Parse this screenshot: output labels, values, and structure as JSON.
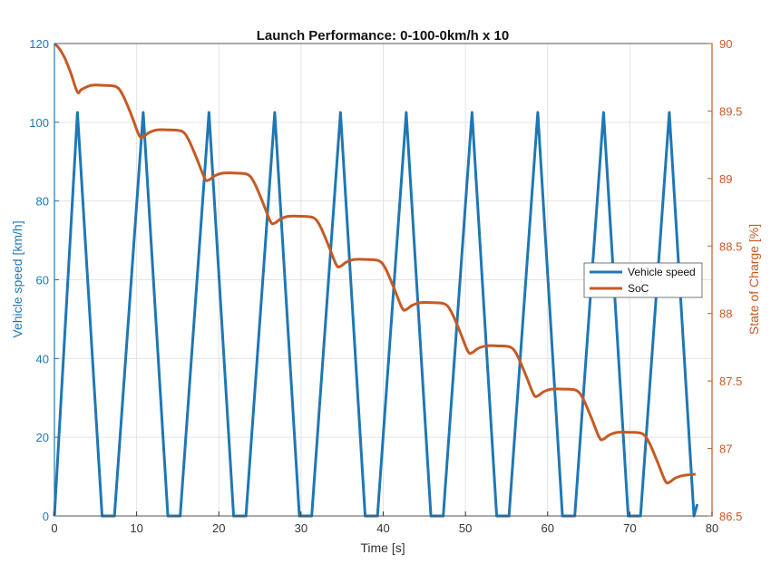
{
  "chart_data": {
    "type": "line",
    "title": "Launch Performance: 0-100-0km/h x 10",
    "xlabel": "Time [s]",
    "ylabel_left": "Vehicle speed [km/h]",
    "ylabel_right": "State of Charge [%]",
    "xlim": [
      0,
      80
    ],
    "ylim_left": [
      0,
      120
    ],
    "ylim_right": [
      86.5,
      90
    ],
    "x_ticks": [
      0,
      10,
      20,
      30,
      40,
      50,
      60,
      70,
      80
    ],
    "y_left_ticks": [
      0,
      20,
      40,
      60,
      80,
      100,
      120
    ],
    "y_right_ticks": [
      "86.5",
      "87",
      "87.5",
      "88",
      "88.5",
      "89",
      "89.5",
      "90"
    ],
    "grid": true,
    "legend_position": "right",
    "colors": {
      "speed": "#1f77b4",
      "soc": "#c55a24",
      "grid": "#e3e3e3",
      "axis": "#333333"
    },
    "series": [
      {
        "name": "Vehicle speed",
        "axis": "left",
        "x": [
          0,
          2.8,
          5.8,
          7.3,
          10.8,
          13.8,
          15.3,
          18.8,
          21.8,
          23.3,
          26.8,
          29.8,
          31.3,
          34.8,
          37.8,
          39.3,
          42.8,
          45.8,
          47.3,
          50.8,
          53.8,
          55.3,
          58.8,
          61.8,
          63.3,
          66.8,
          69.8,
          71.3,
          74.8,
          77.8,
          78.2
        ],
        "y": [
          0,
          102.5,
          0,
          0,
          102.5,
          0,
          0,
          102.5,
          0,
          0,
          102.5,
          0,
          0,
          102.5,
          0,
          0,
          102.5,
          0,
          0,
          102.5,
          0,
          0,
          102.5,
          0,
          0,
          102.5,
          0,
          0,
          102.5,
          0,
          3
        ]
      },
      {
        "name": "SoC",
        "axis": "right",
        "x": [
          0,
          0.5,
          1.2,
          2,
          2.8,
          3.3,
          4.5,
          6,
          7.5,
          8.3,
          9.3,
          10.3,
          10.8,
          11.5,
          12.5,
          14,
          15.5,
          16.3,
          17.3,
          18.3,
          18.8,
          19.5,
          20.5,
          22,
          23.5,
          24.3,
          25.3,
          26.3,
          26.8,
          27.5,
          28.5,
          30,
          31.5,
          32.3,
          33.3,
          34.3,
          34.8,
          35.5,
          36.5,
          38,
          39.5,
          40.3,
          41.3,
          42.3,
          42.8,
          43.5,
          44.5,
          46,
          47.5,
          48.3,
          49.3,
          50.3,
          50.8,
          51.5,
          52.5,
          54,
          55.5,
          56.3,
          57.3,
          58.3,
          58.8,
          59.5,
          60.5,
          62,
          63.5,
          64.3,
          65.3,
          66.3,
          66.8,
          67.5,
          68.5,
          70,
          71.5,
          72.3,
          73.3,
          74.3,
          74.8,
          75.5,
          76.5,
          78
        ],
        "y": [
          90,
          89.97,
          89.9,
          89.78,
          89.64,
          89.66,
          89.69,
          89.69,
          89.68,
          89.62,
          89.48,
          89.32,
          89.31,
          89.34,
          89.36,
          89.36,
          89.35,
          89.29,
          89.15,
          89.0,
          88.99,
          89.02,
          89.04,
          89.04,
          89.03,
          88.97,
          88.83,
          88.68,
          88.67,
          88.7,
          88.72,
          88.72,
          88.71,
          88.65,
          88.51,
          88.36,
          88.35,
          88.38,
          88.4,
          88.4,
          88.39,
          88.33,
          88.19,
          88.04,
          88.03,
          88.06,
          88.08,
          88.08,
          88.07,
          88.01,
          87.87,
          87.72,
          87.71,
          87.74,
          87.76,
          87.76,
          87.75,
          87.69,
          87.55,
          87.4,
          87.39,
          87.42,
          87.44,
          87.44,
          87.43,
          87.37,
          87.23,
          87.08,
          87.07,
          87.1,
          87.12,
          87.12,
          87.11,
          87.05,
          86.91,
          86.76,
          86.75,
          86.78,
          86.8,
          86.81
        ]
      }
    ]
  }
}
